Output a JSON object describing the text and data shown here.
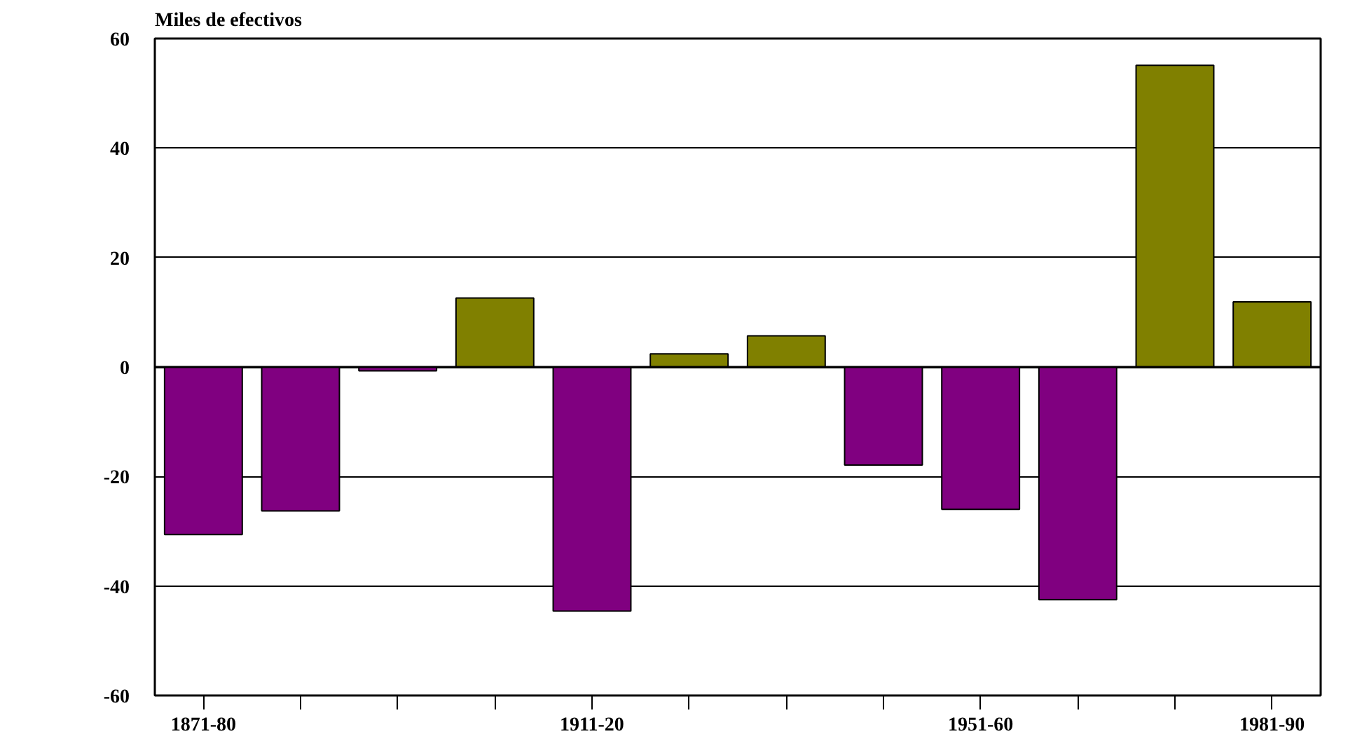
{
  "chart_data": {
    "type": "bar",
    "ylabel": "Miles de efectivos",
    "categories": [
      "1871-80",
      null,
      null,
      null,
      "1911-20",
      null,
      null,
      null,
      "1951-60",
      null,
      null,
      "1981-90"
    ],
    "values": [
      -30.6,
      -26.3,
      -0.7,
      12.6,
      -44.6,
      2.4,
      5.7,
      -17.9,
      -26.0,
      -42.5,
      55.1,
      11.9
    ],
    "colors": [
      "#800080",
      "#800080",
      "#800080",
      "#808000",
      "#800080",
      "#808000",
      "#808000",
      "#800080",
      "#800080",
      "#800080",
      "#808000",
      "#808000"
    ],
    "ylim": [
      -60,
      60
    ],
    "yticks": [
      -60,
      -40,
      -20,
      0,
      20,
      40,
      60
    ],
    "grid": "y"
  }
}
